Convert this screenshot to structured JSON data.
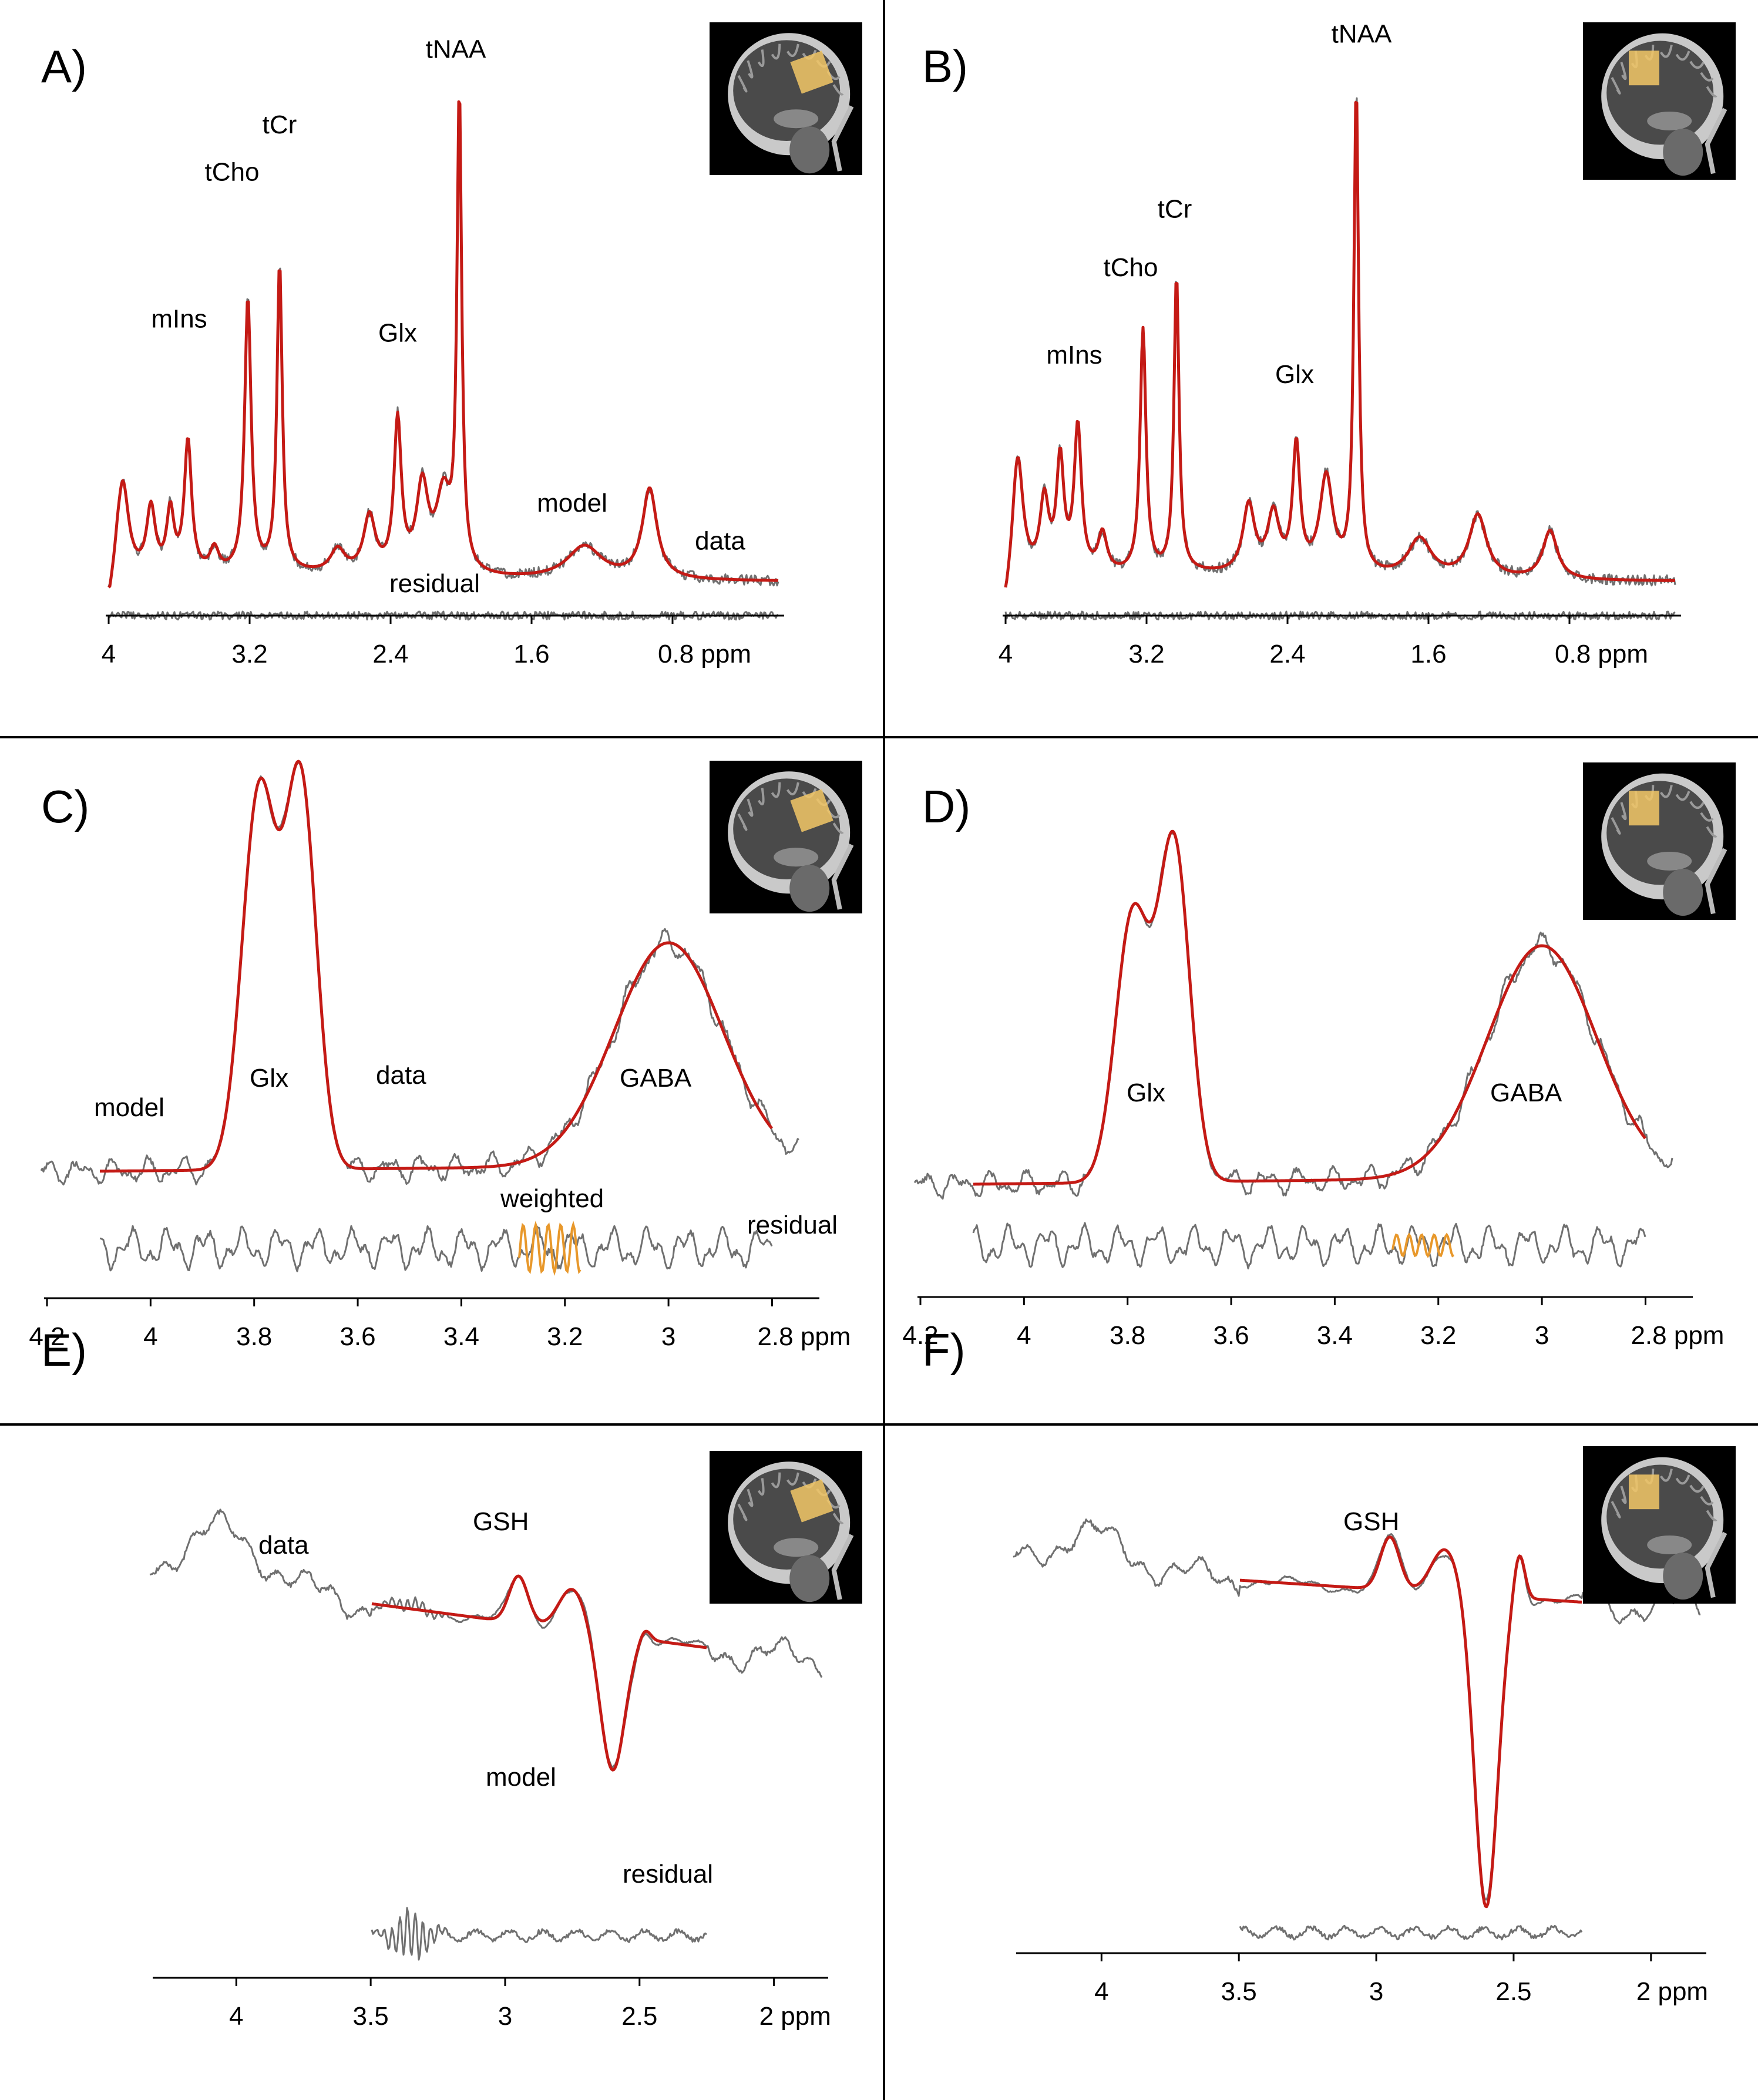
{
  "colors": {
    "model": "#c41a15",
    "data": "#707070",
    "weighted": "#e8982b",
    "axis": "#000000",
    "voxel": "#f2c766"
  },
  "chart_data": [
    {
      "panel": "A)",
      "type": "line",
      "xlim": [
        4.0,
        0.2
      ],
      "xticks": [
        "4",
        "3.2",
        "2.4",
        "1.6",
        "0.8 ppm"
      ],
      "xtick_values": [
        4.0,
        3.2,
        2.4,
        1.6,
        0.8
      ],
      "baseline": 0.0,
      "ylim": [
        -0.06,
        1.05
      ],
      "peaks": [
        {
          "ppm": 3.92,
          "height": 0.2,
          "width": 0.04
        },
        {
          "ppm": 3.76,
          "height": 0.14,
          "width": 0.03
        },
        {
          "ppm": 3.65,
          "height": 0.13,
          "width": 0.025
        },
        {
          "ppm": 3.55,
          "height": 0.28,
          "width": 0.025
        },
        {
          "ppm": 3.4,
          "height": 0.05,
          "width": 0.03
        },
        {
          "ppm": 3.21,
          "height": 0.58,
          "width": 0.022
        },
        {
          "ppm": 3.03,
          "height": 0.65,
          "width": 0.018
        },
        {
          "ppm": 2.7,
          "height": 0.05,
          "width": 0.05
        },
        {
          "ppm": 2.52,
          "height": 0.12,
          "width": 0.04
        },
        {
          "ppm": 2.36,
          "height": 0.32,
          "width": 0.025
        },
        {
          "ppm": 2.22,
          "height": 0.18,
          "width": 0.04
        },
        {
          "ppm": 2.1,
          "height": 0.16,
          "width": 0.05
        },
        {
          "ppm": 2.01,
          "height": 1.0,
          "width": 0.016
        },
        {
          "ppm": 1.3,
          "height": 0.07,
          "width": 0.12
        },
        {
          "ppm": 0.93,
          "height": 0.19,
          "width": 0.05
        }
      ],
      "labels": [
        {
          "text": "mIns",
          "ppm": 3.6,
          "y": 0.55,
          "color": "#000000"
        },
        {
          "text": "tCho",
          "ppm": 3.3,
          "y": 0.86,
          "color": "#000000"
        },
        {
          "text": "tCr",
          "ppm": 3.03,
          "y": 0.96,
          "color": "#000000"
        },
        {
          "text": "Glx",
          "ppm": 2.36,
          "y": 0.52,
          "color": "#000000"
        },
        {
          "text": "tNAA",
          "ppm": 2.03,
          "y": 1.12,
          "color": "#000000"
        },
        {
          "text": "model",
          "ppm": 1.37,
          "y": 0.16,
          "color": "#c41a15"
        },
        {
          "text": "data",
          "ppm": 0.53,
          "y": 0.08,
          "color": "#000000"
        },
        {
          "text": "residual",
          "ppm": 2.15,
          "y": -0.01,
          "color": "#000000"
        }
      ]
    },
    {
      "panel": "B)",
      "type": "line",
      "xlim": [
        4.0,
        0.2
      ],
      "xticks": [
        "4",
        "3.2",
        "2.4",
        "1.6",
        "0.8 ppm"
      ],
      "xtick_values": [
        4.0,
        3.2,
        2.4,
        1.6,
        0.8
      ],
      "baseline": 0.0,
      "ylim": [
        -0.06,
        1.05
      ],
      "peaks": [
        {
          "ppm": 3.93,
          "height": 0.24,
          "width": 0.035
        },
        {
          "ppm": 3.78,
          "height": 0.15,
          "width": 0.03
        },
        {
          "ppm": 3.69,
          "height": 0.23,
          "width": 0.025
        },
        {
          "ppm": 3.59,
          "height": 0.3,
          "width": 0.025
        },
        {
          "ppm": 3.45,
          "height": 0.08,
          "width": 0.03
        },
        {
          "ppm": 3.22,
          "height": 0.5,
          "width": 0.02
        },
        {
          "ppm": 3.03,
          "height": 0.61,
          "width": 0.017
        },
        {
          "ppm": 2.62,
          "height": 0.14,
          "width": 0.04
        },
        {
          "ppm": 2.48,
          "height": 0.12,
          "width": 0.04
        },
        {
          "ppm": 2.35,
          "height": 0.26,
          "width": 0.025
        },
        {
          "ppm": 2.18,
          "height": 0.2,
          "width": 0.045
        },
        {
          "ppm": 2.01,
          "height": 1.0,
          "width": 0.016
        },
        {
          "ppm": 1.65,
          "height": 0.08,
          "width": 0.08
        },
        {
          "ppm": 1.32,
          "height": 0.13,
          "width": 0.06
        },
        {
          "ppm": 0.91,
          "height": 0.1,
          "width": 0.05
        }
      ],
      "labels": [
        {
          "text": "mIns",
          "ppm": 3.61,
          "y": 0.46,
          "color": "#000000"
        },
        {
          "text": "tCho",
          "ppm": 3.29,
          "y": 0.64,
          "color": "#000000"
        },
        {
          "text": "tCr",
          "ppm": 3.04,
          "y": 0.76,
          "color": "#000000"
        },
        {
          "text": "Glx",
          "ppm": 2.36,
          "y": 0.42,
          "color": "#000000"
        },
        {
          "text": "tNAA",
          "ppm": 1.98,
          "y": 1.12,
          "color": "#000000"
        }
      ]
    },
    {
      "panel": "C)",
      "type": "line",
      "xlim": [
        4.2,
        2.72
      ],
      "xticks": [
        "4.2",
        "4",
        "3.8",
        "3.6",
        "3.4",
        "3.2",
        "3",
        "2.8 ppm"
      ],
      "xtick_values": [
        4.2,
        4.0,
        3.8,
        3.6,
        3.4,
        3.2,
        3.0,
        2.8
      ],
      "labels": [
        {
          "text": "model",
          "color": "#c41a15"
        },
        {
          "text": "Glx",
          "color": "#000000"
        },
        {
          "text": "data",
          "color": "#000000"
        },
        {
          "text": "GABA",
          "color": "#000000"
        },
        {
          "text": "weighted",
          "color": "#e8982b"
        },
        {
          "text": "residual",
          "color": "#000000"
        }
      ]
    },
    {
      "panel": "D)",
      "type": "line",
      "xlim": [
        4.2,
        2.72
      ],
      "xticks": [
        "4.2",
        "4",
        "3.8",
        "3.6",
        "3.4",
        "3.2",
        "3",
        "2.8 ppm"
      ],
      "xtick_values": [
        4.2,
        4.0,
        3.8,
        3.6,
        3.4,
        3.2,
        3.0,
        2.8
      ],
      "labels": [
        {
          "text": "Glx",
          "color": "#000000"
        },
        {
          "text": "GABA",
          "color": "#000000"
        }
      ]
    },
    {
      "panel": "E)",
      "type": "line",
      "xlim": [
        4.3,
        1.82
      ],
      "xticks": [
        "4",
        "3.5",
        "3",
        "2.5",
        "2 ppm"
      ],
      "xtick_values": [
        4.0,
        3.5,
        3.0,
        2.5,
        2.0
      ],
      "labels": [
        {
          "text": "data",
          "color": "#000000"
        },
        {
          "text": "GSH",
          "color": "#000000"
        },
        {
          "text": "model",
          "color": "#c41a15"
        },
        {
          "text": "residual",
          "color": "#000000"
        }
      ]
    },
    {
      "panel": "F)",
      "type": "line",
      "xlim": [
        4.3,
        1.82
      ],
      "xticks": [
        "4",
        "3.5",
        "3",
        "2.5",
        "2 ppm"
      ],
      "xtick_values": [
        4.0,
        3.5,
        3.0,
        2.5,
        2.0
      ],
      "labels": [
        {
          "text": "GSH",
          "color": "#000000"
        }
      ]
    }
  ]
}
